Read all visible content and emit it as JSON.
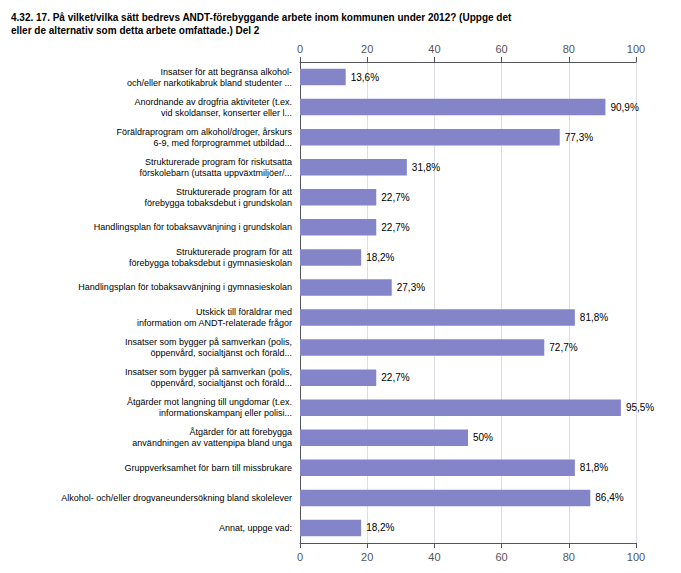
{
  "chart_data": {
    "type": "bar",
    "orientation": "horizontal",
    "title": "4.32. 17. På vilket/vilka sätt bedrevs ANDT-förebyggande arbete inom kommunen under 2012? (Uppge det\neller de alternativ som detta arbete omfattade.) Del 2",
    "categories": [
      "Insatser för att begränsa alkohol-\noch/eller narkotikabruk bland studenter ...",
      "Anordnande av drogfria aktiviteter (t.ex.\nvid skoldanser, konserter eller l...",
      "Föräldraprogram om alkohol/droger, årskurs\n6-9, med förprogrammet utbildad...",
      "Strukturerade program för riskutsatta\nförskolebarn (utsatta uppväxtmiljöer/...",
      "Strukturerade program för att\nförebygga tobaksdebut i grundskolan",
      "Handlingsplan för tobaksavvänjning i grundskolan",
      "Strukturerade program för att\nförebygga tobaksdebut i gymnasieskolan",
      "Handlingsplan för tobaksavvänjning i gymnasieskolan",
      "Utskick till föräldrar med\ninformation om ANDT-relaterade frågor",
      "Insatser som bygger på samverkan (polis,\nöppenvård, socialtjänst och föräld...",
      "Insatser som bygger på samverkan (polis,\nöppenvård, socialtjänst och föräld...",
      "Åtgärder mot langning till ungdomar (t.ex.\ninformationskampanj eller polisi...",
      "Åtgärder för att förebygga\nanvändningen av vattenpipa bland unga",
      "Gruppverksamhet för barn till missbrukare",
      "Alkohol- och/eller drogvaneundersökning bland skolelever",
      "Annat, uppge vad:"
    ],
    "values": [
      13.6,
      90.9,
      77.3,
      31.8,
      22.7,
      22.7,
      18.2,
      27.3,
      81.8,
      72.7,
      22.7,
      95.5,
      50.0,
      81.8,
      86.4,
      18.2
    ],
    "value_labels": [
      "13,6%",
      "90,9%",
      "77,3%",
      "31,8%",
      "22,7%",
      "22,7%",
      "18,2%",
      "27,3%",
      "81,8%",
      "72,7%",
      "22,7%",
      "95,5%",
      "50%",
      "81,8%",
      "86,4%",
      "18,2%"
    ],
    "data_labels": true,
    "color": "#8484c8",
    "xlim": [
      0,
      100
    ],
    "xticks": [
      0,
      20,
      40,
      60,
      80,
      100
    ],
    "grid": true
  }
}
